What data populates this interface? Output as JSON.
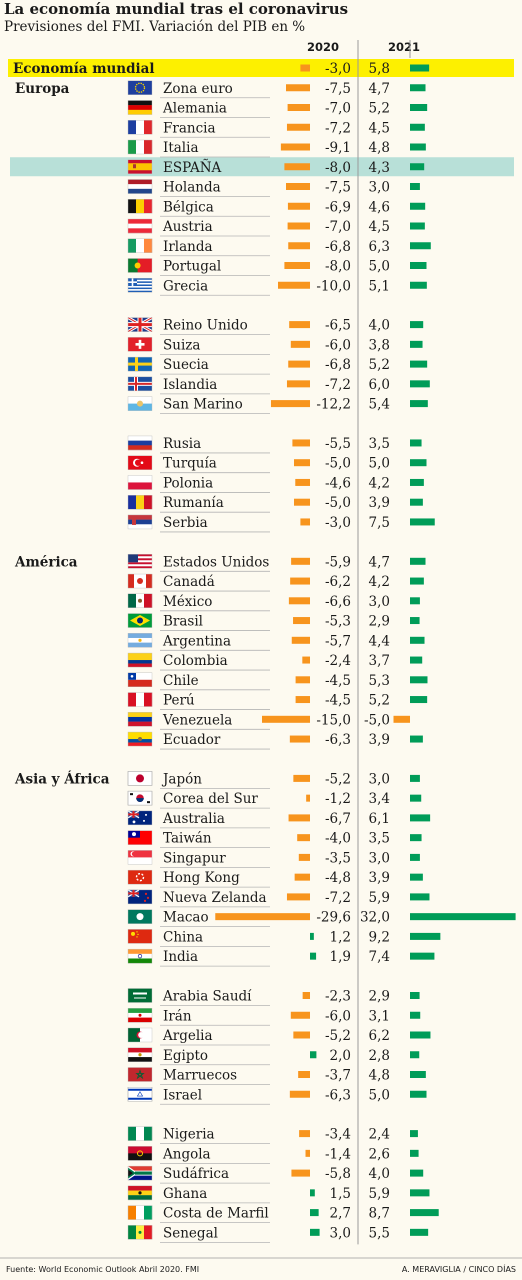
{
  "header": {
    "title": "La economía mundial tras el coronavirus",
    "subtitle": "Previsiones del FMI. Variación del PIB en %"
  },
  "footer": {
    "source": "Fuente: World Economic Outlook Abril 2020. FMI",
    "credit": "A. MERAVIGLIA / CINCO DÍAS"
  },
  "colors": {
    "negative": "#f7941d",
    "positive": "#009c58",
    "highlight_world": "#fdf000",
    "highlight_spain": "#b8e0d8",
    "separator": "#9a9a9a"
  },
  "chart_data": {
    "type": "bar",
    "series": [
      {
        "name": "2020"
      },
      {
        "name": "2021"
      }
    ],
    "rows": [
      {
        "country": "Economía mundial",
        "v2020": "-3,0",
        "v2021": "5,8",
        "highlight": "world"
      },
      {
        "country": "Zona euro",
        "group": "Europa",
        "flag": "eu",
        "v2020": "-7,5",
        "v2021": "4,7"
      },
      {
        "country": "Alemania",
        "flag": "de",
        "v2020": "-7,0",
        "v2021": "5,2"
      },
      {
        "country": "Francia",
        "flag": "fr",
        "v2020": "-7,2",
        "v2021": "4,5"
      },
      {
        "country": "Italia",
        "flag": "it",
        "v2020": "-9,1",
        "v2021": "4,8"
      },
      {
        "country": "ESPAÑA",
        "flag": "es",
        "v2020": "-8,0",
        "v2021": "4,3",
        "highlight": "spain"
      },
      {
        "country": "Holanda",
        "flag": "nl",
        "v2020": "-7,5",
        "v2021": "3,0"
      },
      {
        "country": "Bélgica",
        "flag": "be",
        "v2020": "-6,9",
        "v2021": "4,6"
      },
      {
        "country": "Austria",
        "flag": "at",
        "v2020": "-7,0",
        "v2021": "4,5"
      },
      {
        "country": "Irlanda",
        "flag": "ie",
        "v2020": "-6,8",
        "v2021": "6,3"
      },
      {
        "country": "Portugal",
        "flag": "pt",
        "v2020": "-8,0",
        "v2021": "5,0"
      },
      {
        "country": "Grecia",
        "flag": "gr",
        "v2020": "-10,0",
        "v2021": "5,1"
      },
      {
        "country": "Reino Unido",
        "flag": "gb",
        "v2020": "-6,5",
        "v2021": "4,0",
        "gap": true
      },
      {
        "country": "Suiza",
        "flag": "ch",
        "v2020": "-6,0",
        "v2021": "3,8"
      },
      {
        "country": "Suecia",
        "flag": "se",
        "v2020": "-6,8",
        "v2021": "5,2"
      },
      {
        "country": "Islandia",
        "flag": "is",
        "v2020": "-7,2",
        "v2021": "6,0"
      },
      {
        "country": "San Marino",
        "flag": "sm",
        "v2020": "-12,2",
        "v2021": "5,4"
      },
      {
        "country": "Rusia",
        "flag": "ru",
        "v2020": "-5,5",
        "v2021": "3,5",
        "gap": true
      },
      {
        "country": "Turquía",
        "flag": "tr",
        "v2020": "-5,0",
        "v2021": "5,0"
      },
      {
        "country": "Polonia",
        "flag": "pl",
        "v2020": "-4,6",
        "v2021": "4,2"
      },
      {
        "country": "Rumanía",
        "flag": "ro",
        "v2020": "-5,0",
        "v2021": "3,9"
      },
      {
        "country": "Serbia",
        "flag": "rs",
        "v2020": "-3,0",
        "v2021": "7,5"
      },
      {
        "country": "Estados Unidos",
        "group": "América",
        "flag": "us",
        "v2020": "-5,9",
        "v2021": "4,7",
        "gap": true
      },
      {
        "country": "Canadá",
        "flag": "ca",
        "v2020": "-6,2",
        "v2021": "4,2"
      },
      {
        "country": "México",
        "flag": "mx",
        "v2020": "-6,6",
        "v2021": "3,0"
      },
      {
        "country": "Brasil",
        "flag": "br",
        "v2020": "-5,3",
        "v2021": "2,9"
      },
      {
        "country": "Argentina",
        "flag": "ar",
        "v2020": "-5,7",
        "v2021": "4,4"
      },
      {
        "country": "Colombia",
        "flag": "co",
        "v2020": "-2,4",
        "v2021": "3,7"
      },
      {
        "country": "Chile",
        "flag": "cl",
        "v2020": "-4,5",
        "v2021": "5,3"
      },
      {
        "country": "Perú",
        "flag": "pe",
        "v2020": "-4,5",
        "v2021": "5,2"
      },
      {
        "country": "Venezuela",
        "flag": "ve",
        "v2020": "-15,0",
        "v2021": "-5,0"
      },
      {
        "country": "Ecuador",
        "flag": "ec",
        "v2020": "-6,3",
        "v2021": "3,9"
      },
      {
        "country": "Japón",
        "group": "Asia y África",
        "flag": "jp",
        "v2020": "-5,2",
        "v2021": "3,0",
        "gap": true
      },
      {
        "country": "Corea del Sur",
        "flag": "kr",
        "v2020": "-1,2",
        "v2021": "3,4"
      },
      {
        "country": "Australia",
        "flag": "au",
        "v2020": "-6,7",
        "v2021": "6,1"
      },
      {
        "country": "Taiwán",
        "flag": "tw",
        "v2020": "-4,0",
        "v2021": "3,5"
      },
      {
        "country": "Singapur",
        "flag": "sg",
        "v2020": "-3,5",
        "v2021": "3,0"
      },
      {
        "country": "Hong Kong",
        "flag": "hk",
        "v2020": "-4,8",
        "v2021": "3,9"
      },
      {
        "country": "Nueva Zelanda",
        "flag": "nz",
        "v2020": "-7,2",
        "v2021": "5,9"
      },
      {
        "country": "Macao",
        "flag": "mo",
        "v2020": "-29,6",
        "v2021": "32,0"
      },
      {
        "country": "China",
        "flag": "cn",
        "v2020": "1,2",
        "v2021": "9,2"
      },
      {
        "country": "India",
        "flag": "in",
        "v2020": "1,9",
        "v2021": "7,4"
      },
      {
        "country": "Arabia Saudí",
        "flag": "sa",
        "v2020": "-2,3",
        "v2021": "2,9",
        "gap": true
      },
      {
        "country": "Irán",
        "flag": "ir",
        "v2020": "-6,0",
        "v2021": "3,1"
      },
      {
        "country": "Argelia",
        "flag": "dz",
        "v2020": "-5,2",
        "v2021": "6,2"
      },
      {
        "country": "Egipto",
        "flag": "eg",
        "v2020": "2,0",
        "v2021": "2,8"
      },
      {
        "country": "Marruecos",
        "flag": "ma",
        "v2020": "-3,7",
        "v2021": "4,8"
      },
      {
        "country": "Israel",
        "flag": "il",
        "v2020": "-6,3",
        "v2021": "5,0"
      },
      {
        "country": "Nigeria",
        "flag": "ng",
        "v2020": "-3,4",
        "v2021": "2,4",
        "gap": true
      },
      {
        "country": "Angola",
        "flag": "ao",
        "v2020": "-1,4",
        "v2021": "2,6"
      },
      {
        "country": "Sudáfrica",
        "flag": "za",
        "v2020": "-5,8",
        "v2021": "4,0"
      },
      {
        "country": "Ghana",
        "flag": "gh",
        "v2020": "1,5",
        "v2021": "5,9"
      },
      {
        "country": "Costa de Marfil",
        "flag": "ci",
        "v2020": "2,7",
        "v2021": "8,7"
      },
      {
        "country": "Senegal",
        "flag": "sn",
        "v2020": "3,0",
        "v2021": "5,5"
      }
    ]
  }
}
